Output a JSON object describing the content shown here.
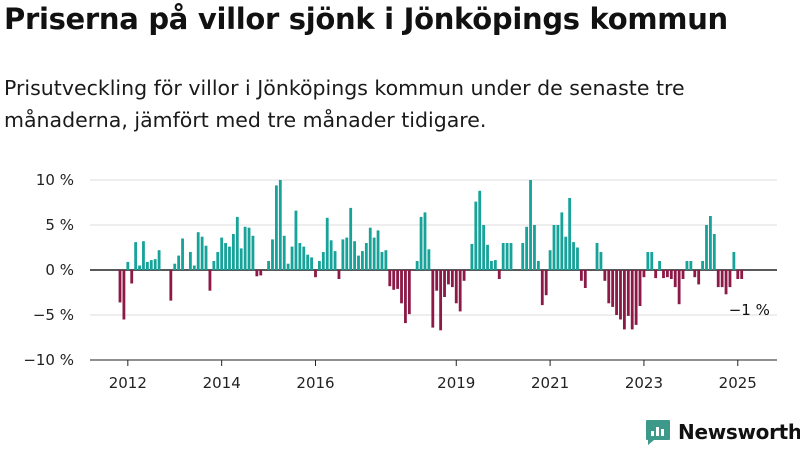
{
  "title": "Priserna på villor sjönk i Jönköpings kommun",
  "subtitle": "Prisutveckling för villor i Jönköpings kommun under de senaste tre månaderna, jämfört med tre månader tidigare.",
  "brand": {
    "name": "Newsworthy",
    "icon": "newsworthy-logo-icon",
    "color": "#3d9a8b"
  },
  "chart_data": {
    "type": "bar",
    "x_start": "2011-11",
    "x_step": "month",
    "values": [
      -3.6,
      -5.5,
      0.9,
      -1.5,
      3.1,
      0.5,
      3.2,
      0.9,
      1.1,
      1.2,
      2.2,
      0,
      0,
      -3.4,
      0.7,
      1.6,
      3.5,
      0,
      2.0,
      0.5,
      4.2,
      3.7,
      2.7,
      -2.3,
      1.0,
      2.0,
      3.6,
      3.0,
      2.6,
      4.0,
      5.9,
      2.4,
      4.8,
      4.7,
      3.8,
      -0.7,
      -0.6,
      0,
      1.0,
      3.4,
      9.4,
      10.0,
      3.8,
      0.7,
      2.6,
      6.6,
      3.0,
      2.6,
      1.7,
      1.4,
      -0.8,
      1.0,
      2.0,
      5.8,
      3.3,
      2.1,
      -1.0,
      3.4,
      3.6,
      6.9,
      3.2,
      1.6,
      2.1,
      3.0,
      4.7,
      3.6,
      4.4,
      2.0,
      2.2,
      -1.8,
      -2.2,
      -2.1,
      -3.7,
      -5.9,
      -4.9,
      0,
      1.0,
      5.9,
      6.4,
      2.3,
      -6.4,
      -2.3,
      -6.7,
      -3.0,
      -1.6,
      -1.9,
      -3.7,
      -4.6,
      -1.2,
      0,
      2.9,
      7.6,
      8.8,
      5.0,
      2.8,
      1.0,
      1.1,
      -1.0,
      3.0,
      3.0,
      3.0,
      0,
      0,
      3.0,
      4.8,
      10.0,
      5.0,
      1.0,
      -3.9,
      -2.8,
      2.2,
      5.0,
      5.0,
      6.4,
      3.7,
      8.0,
      3.1,
      2.5,
      -1.2,
      -2.0,
      0,
      0,
      3.0,
      2.0,
      -1.2,
      -3.7,
      -4.1,
      -5.0,
      -5.5,
      -6.6,
      -5.1,
      -6.6,
      -6.1,
      -4.0,
      -0.8,
      2.0,
      2.0,
      -0.9,
      1.0,
      -0.9,
      -0.8,
      -1.0,
      -1.9,
      -3.8,
      -1.0,
      1.0,
      1.0,
      -0.8,
      -1.6,
      1.0,
      5.0,
      6.0,
      4.0,
      -1.9,
      -1.9,
      -2.7,
      -1.9,
      2.0,
      -1.0,
      -1.0
    ],
    "colors": {
      "positive": "#17a39a",
      "negative": "#8c1946"
    },
    "ylim": [
      -10,
      10
    ],
    "yticks": [
      -10,
      -5,
      0,
      5,
      10
    ],
    "ytick_labels": [
      "−10 %",
      "−5 %",
      "0 %",
      "5 %",
      "10 %"
    ],
    "xticks": [
      "2012",
      "2014",
      "2016",
      "2019",
      "2021",
      "2023",
      "2025"
    ],
    "grid": true,
    "annotation": {
      "text": "−1 %"
    },
    "xlabel": "",
    "ylabel": ""
  }
}
